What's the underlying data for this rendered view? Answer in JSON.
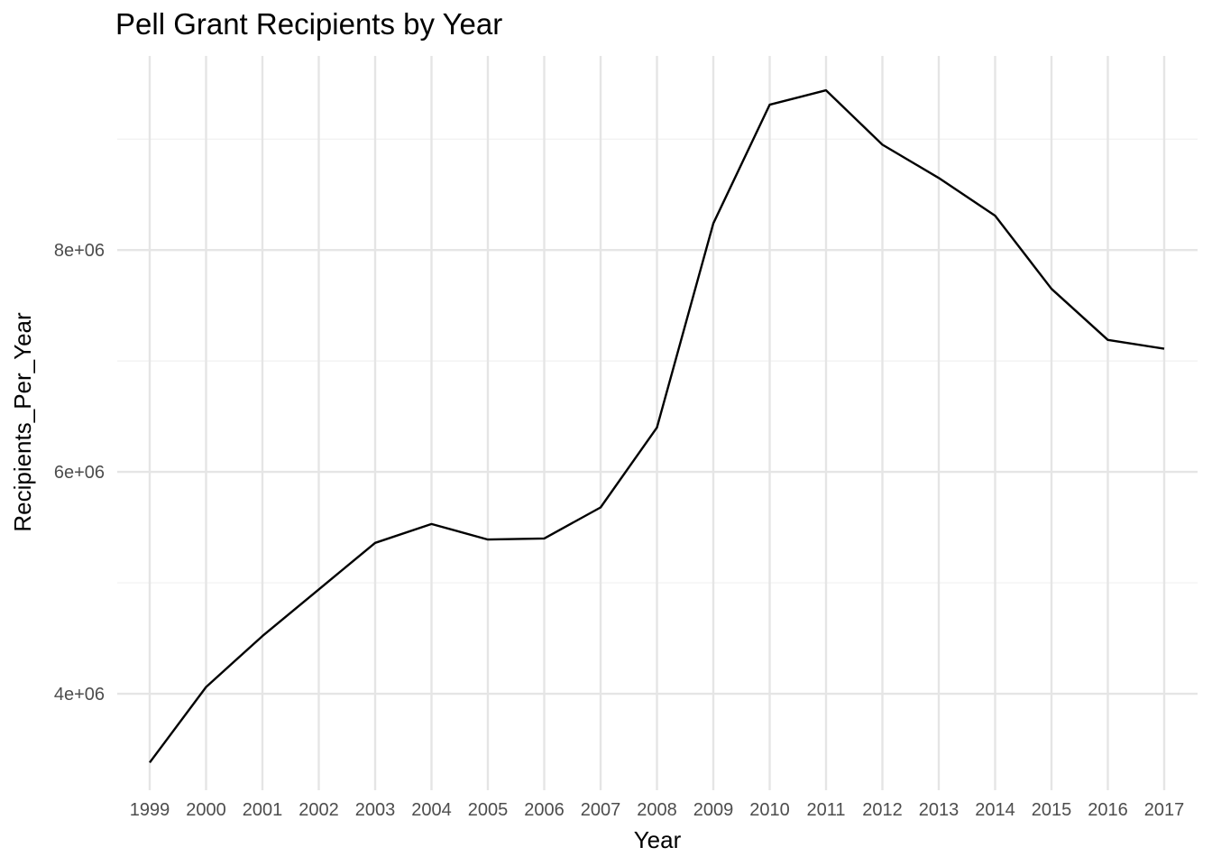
{
  "chart_data": {
    "type": "line",
    "title": "Pell Grant Recipients by Year",
    "xlabel": "Year",
    "ylabel": "Recipients_Per_Year",
    "x": [
      "1999",
      "2000",
      "2001",
      "2002",
      "2003",
      "2004",
      "2005",
      "2006",
      "2007",
      "2008",
      "2009",
      "2010",
      "2011",
      "2012",
      "2013",
      "2014",
      "2015",
      "2016",
      "2017"
    ],
    "series": [
      {
        "values": [
          3380000,
          4060000,
          4520000,
          4940000,
          5360000,
          5530000,
          5390000,
          5400000,
          5680000,
          6400000,
          8240000,
          9310000,
          9440000,
          8950000,
          8650000,
          8310000,
          7650000,
          7190000,
          7110000
        ]
      }
    ],
    "ylim": [
      3130000,
      9750000
    ],
    "yticks": [
      4000000,
      6000000,
      8000000
    ],
    "ytick_labels": [
      "4e+06",
      "6e+06",
      "8e+06"
    ],
    "yminor": [
      5000000,
      7000000,
      9000000
    ],
    "grid": true,
    "colors": {
      "line": "#000000",
      "grid_major": "#e5e5e5",
      "grid_minor": "#f0f0f0"
    }
  }
}
